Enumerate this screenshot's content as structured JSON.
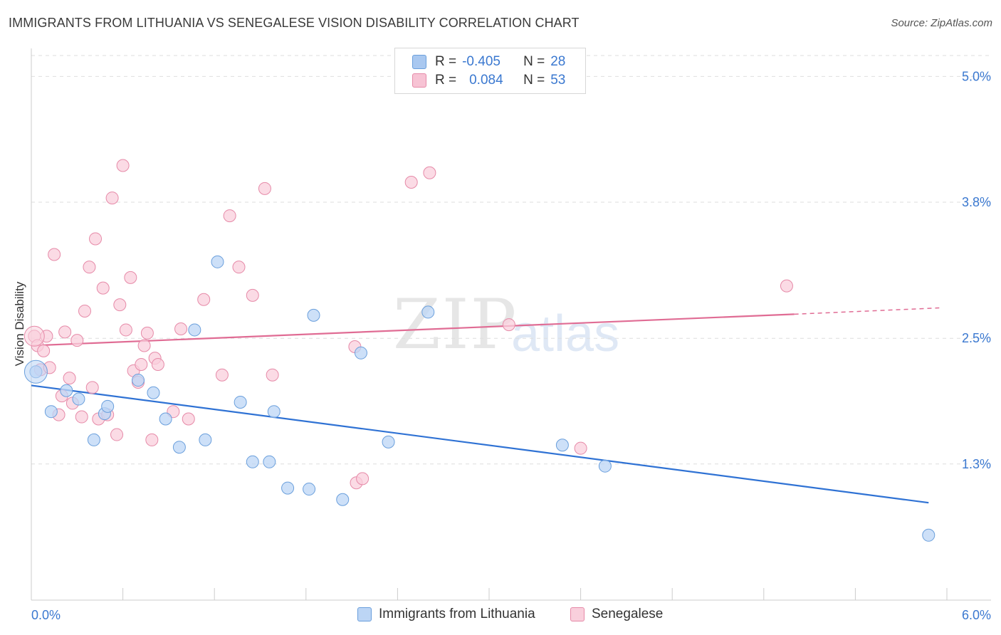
{
  "title": "IMMIGRANTS FROM LITHUANIA VS SENEGALESE VISION DISABILITY CORRELATION CHART",
  "source": "Source: ZipAtlas.com",
  "watermark": {
    "zip": "ZIP",
    "atlas": "atlas"
  },
  "legend_top": {
    "rows": [
      {
        "r_label": "R =",
        "r_value": "-0.405",
        "n_label": "N =",
        "n_value": "28",
        "color": "#a9c8f0",
        "border": "#6a9fdc"
      },
      {
        "r_label": "R =",
        "r_value": "0.084",
        "n_label": "N =",
        "n_value": "53",
        "color": "#f7c3d4",
        "border": "#e68aa8"
      }
    ]
  },
  "legend_bottom": {
    "items": [
      {
        "label": "Immigrants from Lithuania",
        "color": "#bcd5f5",
        "border": "#6a9fdc"
      },
      {
        "label": "Senegalese",
        "color": "#f9cfdc",
        "border": "#e68aa8"
      }
    ]
  },
  "chart_data": {
    "type": "scatter",
    "title": "IMMIGRANTS FROM LITHUANIA VS SENEGALESE VISION DISABILITY CORRELATION CHART",
    "xlabel": "",
    "ylabel": "Vision Disability",
    "xlim": [
      0,
      6.0
    ],
    "ylim": [
      0,
      5.2
    ],
    "x_tick_labels": [
      "0.0%",
      "6.0%"
    ],
    "y_ticks": [
      1.3,
      2.5,
      3.8,
      5.0
    ],
    "y_tick_labels": [
      "1.3%",
      "2.5%",
      "3.8%",
      "5.0%"
    ],
    "grid": true,
    "series": [
      {
        "name": "Immigrants from Lithuania",
        "color": "#bcd5f5",
        "stroke": "#6a9fdc",
        "trend": {
          "x": [
            0.0,
            5.88
          ],
          "y": [
            2.05,
            0.93
          ]
        },
        "points": [
          [
            0.03,
            2.18
          ],
          [
            0.13,
            1.8
          ],
          [
            0.23,
            2.0
          ],
          [
            0.31,
            1.92
          ],
          [
            0.41,
            1.53
          ],
          [
            0.48,
            1.78
          ],
          [
            0.5,
            1.85
          ],
          [
            0.7,
            2.1
          ],
          [
            0.8,
            1.98
          ],
          [
            0.88,
            1.73
          ],
          [
            0.97,
            1.46
          ],
          [
            1.07,
            2.58
          ],
          [
            1.14,
            1.53
          ],
          [
            1.22,
            3.23
          ],
          [
            1.37,
            1.89
          ],
          [
            1.45,
            1.32
          ],
          [
            1.59,
            1.8
          ],
          [
            1.56,
            1.32
          ],
          [
            1.68,
            1.07
          ],
          [
            1.82,
            1.06
          ],
          [
            1.85,
            2.72
          ],
          [
            2.04,
            0.96
          ],
          [
            2.16,
            2.36
          ],
          [
            2.34,
            1.51
          ],
          [
            2.6,
            2.75
          ],
          [
            3.48,
            1.48
          ],
          [
            3.76,
            1.28
          ],
          [
            5.88,
            0.62
          ]
        ]
      },
      {
        "name": "Senegalese",
        "color": "#f9cfdc",
        "stroke": "#e68aa8",
        "trend": {
          "x": [
            0.0,
            5.0
          ],
          "y": [
            2.43,
            2.73
          ]
        },
        "trend_dashed": {
          "x": [
            5.0,
            5.95
          ],
          "y": [
            2.73,
            2.79
          ]
        },
        "points": [
          [
            0.02,
            2.52
          ],
          [
            0.04,
            2.43
          ],
          [
            0.06,
            2.2
          ],
          [
            0.08,
            2.38
          ],
          [
            0.1,
            2.52
          ],
          [
            0.12,
            2.22
          ],
          [
            0.15,
            3.3
          ],
          [
            0.18,
            1.77
          ],
          [
            0.2,
            1.95
          ],
          [
            0.22,
            2.56
          ],
          [
            0.25,
            2.12
          ],
          [
            0.27,
            1.88
          ],
          [
            0.3,
            2.48
          ],
          [
            0.33,
            1.75
          ],
          [
            0.35,
            2.76
          ],
          [
            0.38,
            3.18
          ],
          [
            0.4,
            2.03
          ],
          [
            0.42,
            3.45
          ],
          [
            0.44,
            1.73
          ],
          [
            0.47,
            2.98
          ],
          [
            0.5,
            1.77
          ],
          [
            0.53,
            3.84
          ],
          [
            0.56,
            1.58
          ],
          [
            0.58,
            2.82
          ],
          [
            0.6,
            4.15
          ],
          [
            0.62,
            2.58
          ],
          [
            0.65,
            3.08
          ],
          [
            0.67,
            2.19
          ],
          [
            0.7,
            2.08
          ],
          [
            0.72,
            2.25
          ],
          [
            0.74,
            2.43
          ],
          [
            0.76,
            2.55
          ],
          [
            0.79,
            1.53
          ],
          [
            0.81,
            2.31
          ],
          [
            0.83,
            2.25
          ],
          [
            0.93,
            1.8
          ],
          [
            0.98,
            2.59
          ],
          [
            1.03,
            1.73
          ],
          [
            1.13,
            2.87
          ],
          [
            1.25,
            2.15
          ],
          [
            1.3,
            3.67
          ],
          [
            1.36,
            3.18
          ],
          [
            1.45,
            2.91
          ],
          [
            1.53,
            3.93
          ],
          [
            1.58,
            2.15
          ],
          [
            2.12,
            2.42
          ],
          [
            2.13,
            1.12
          ],
          [
            2.17,
            1.16
          ],
          [
            2.49,
            3.99
          ],
          [
            2.61,
            4.08
          ],
          [
            3.13,
            2.63
          ],
          [
            3.6,
            1.45
          ],
          [
            4.95,
            3.0
          ]
        ]
      }
    ]
  }
}
